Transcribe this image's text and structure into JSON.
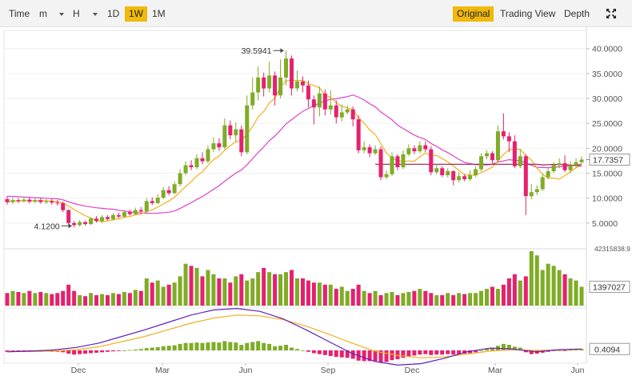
{
  "toolbar": {
    "time_label": "Time",
    "minute_label": "m",
    "hour_label": "H",
    "intervals": [
      "1D",
      "1W",
      "1M"
    ],
    "active_interval": "1W",
    "views": [
      "Original",
      "Trading View",
      "Depth"
    ],
    "active_view": "Original",
    "fullscreen_icon": "expand-icon"
  },
  "colors": {
    "up": "#7fac25",
    "down": "#e5216e",
    "ma_fast": "#f2b01e",
    "ma_slow": "#e040c8",
    "ma_mid": "#9b1a4b",
    "macd_line": "#6020c0",
    "signal_line": "#f2b01e",
    "accent": "#f0b90b"
  },
  "chart_data": [
    {
      "type": "candlestick",
      "title": "",
      "x_labels": [
        "Dec",
        "Mar",
        "Jun",
        "Sep",
        "Dec",
        "Mar",
        "Jun"
      ],
      "y_ticks": [
        "40.0000",
        "35.0000",
        "30.0000",
        "25.0000",
        "20.0000",
        "15.0000",
        "10.0000",
        "5.0000"
      ],
      "ylim": [
        0,
        43
      ],
      "high_label": "39.5941",
      "low_label": "4.1200",
      "last_price_label": "17.7357",
      "candles": [
        [
          9.8,
          9.2,
          10.4,
          8.7
        ],
        [
          9.2,
          9.6,
          10.1,
          8.8
        ],
        [
          9.6,
          9.4,
          10.0,
          9.0
        ],
        [
          9.4,
          9.7,
          10.3,
          9.1
        ],
        [
          9.7,
          9.3,
          10.2,
          8.9
        ],
        [
          9.3,
          9.6,
          10.0,
          9.0
        ],
        [
          9.6,
          9.2,
          10.0,
          8.9
        ],
        [
          9.2,
          9.4,
          9.8,
          8.8
        ],
        [
          9.4,
          9.1,
          9.9,
          8.7
        ],
        [
          9.1,
          9.0,
          9.6,
          8.5
        ],
        [
          9.0,
          7.6,
          9.3,
          7.2
        ],
        [
          7.6,
          5.0,
          7.8,
          4.6
        ],
        [
          5.0,
          4.6,
          5.4,
          4.12
        ],
        [
          4.6,
          5.2,
          5.6,
          4.3
        ],
        [
          5.2,
          4.8,
          5.5,
          4.5
        ],
        [
          4.8,
          5.9,
          6.2,
          4.6
        ],
        [
          5.9,
          5.4,
          6.4,
          5.1
        ],
        [
          5.4,
          6.2,
          6.6,
          5.0
        ],
        [
          6.2,
          5.8,
          6.6,
          5.5
        ],
        [
          5.8,
          6.6,
          7.0,
          5.5
        ],
        [
          6.6,
          6.3,
          7.1,
          6.0
        ],
        [
          6.3,
          7.2,
          7.6,
          6.1
        ],
        [
          7.2,
          6.8,
          7.7,
          6.5
        ],
        [
          6.8,
          7.6,
          8.1,
          6.6
        ],
        [
          7.6,
          7.3,
          8.2,
          7.0
        ],
        [
          7.3,
          9.4,
          10.0,
          7.1
        ],
        [
          9.4,
          9.0,
          10.2,
          8.6
        ],
        [
          9.0,
          10.1,
          10.8,
          8.8
        ],
        [
          10.1,
          11.6,
          12.2,
          9.8
        ],
        [
          11.6,
          11.0,
          12.4,
          10.6
        ],
        [
          11.0,
          12.8,
          13.4,
          10.8
        ],
        [
          12.8,
          15.0,
          15.8,
          12.4
        ],
        [
          15.0,
          16.6,
          17.4,
          14.6
        ],
        [
          16.6,
          16.2,
          17.6,
          15.6
        ],
        [
          16.2,
          18.0,
          18.8,
          15.8
        ],
        [
          18.0,
          17.4,
          19.2,
          16.8
        ],
        [
          17.4,
          19.8,
          20.6,
          17.0
        ],
        [
          19.8,
          21.0,
          22.2,
          19.2
        ],
        [
          21.0,
          20.2,
          22.0,
          19.5
        ],
        [
          20.2,
          24.6,
          26.0,
          19.8
        ],
        [
          24.6,
          22.6,
          25.6,
          21.8
        ],
        [
          22.6,
          23.8,
          25.2,
          21.2
        ],
        [
          23.8,
          19.2,
          24.6,
          18.4
        ],
        [
          19.2,
          28.6,
          30.6,
          18.8
        ],
        [
          28.6,
          31.2,
          34.2,
          27.8
        ],
        [
          31.2,
          34.2,
          36.4,
          29.6
        ],
        [
          34.2,
          32.0,
          35.2,
          30.4
        ],
        [
          32.0,
          34.6,
          37.4,
          31.2
        ],
        [
          34.6,
          30.6,
          35.4,
          28.6
        ],
        [
          30.6,
          34.2,
          37.8,
          30.0
        ],
        [
          34.2,
          38.0,
          39.5941,
          32.6
        ],
        [
          38.0,
          32.0,
          38.6,
          30.6
        ],
        [
          32.0,
          33.4,
          35.6,
          31.4
        ],
        [
          33.4,
          32.6,
          34.4,
          31.2
        ],
        [
          32.6,
          29.8,
          33.6,
          28.2
        ],
        [
          29.8,
          28.2,
          30.6,
          24.8
        ],
        [
          28.2,
          31.0,
          32.4,
          26.4
        ],
        [
          31.0,
          27.8,
          31.8,
          26.6
        ],
        [
          27.8,
          28.6,
          31.6,
          26.8
        ],
        [
          28.6,
          26.2,
          29.6,
          25.0
        ],
        [
          26.2,
          27.2,
          28.8,
          25.4
        ],
        [
          27.2,
          27.8,
          28.6,
          26.8
        ],
        [
          27.8,
          25.8,
          28.4,
          24.4
        ],
        [
          25.8,
          19.6,
          26.6,
          19.0
        ],
        [
          19.6,
          20.2,
          21.4,
          19.0
        ],
        [
          20.2,
          19.0,
          20.8,
          18.2
        ],
        [
          19.0,
          19.8,
          20.6,
          18.6
        ],
        [
          19.8,
          14.2,
          20.4,
          13.6
        ],
        [
          14.2,
          14.8,
          15.6,
          13.8
        ],
        [
          14.8,
          18.4,
          19.2,
          14.4
        ],
        [
          18.4,
          16.2,
          18.8,
          15.6
        ],
        [
          16.2,
          18.8,
          19.6,
          15.8
        ],
        [
          18.8,
          20.0,
          20.8,
          18.4
        ],
        [
          20.0,
          19.4,
          20.6,
          18.8
        ],
        [
          19.4,
          20.6,
          21.4,
          19.0
        ],
        [
          20.6,
          19.8,
          21.4,
          19.2
        ],
        [
          19.8,
          15.2,
          20.4,
          14.6
        ],
        [
          15.2,
          16.0,
          16.8,
          14.8
        ],
        [
          16.0,
          14.6,
          16.4,
          14.2
        ],
        [
          14.6,
          15.4,
          16.0,
          14.2
        ],
        [
          15.4,
          13.6,
          15.6,
          12.6
        ],
        [
          13.6,
          14.4,
          15.2,
          13.2
        ],
        [
          14.4,
          13.8,
          14.8,
          13.4
        ],
        [
          13.8,
          14.6,
          15.6,
          13.4
        ],
        [
          14.6,
          15.8,
          16.4,
          14.2
        ],
        [
          15.8,
          18.4,
          19.0,
          15.4
        ],
        [
          18.4,
          19.0,
          19.6,
          17.8
        ],
        [
          19.0,
          17.6,
          19.4,
          17.0
        ],
        [
          17.6,
          23.4,
          24.6,
          17.4
        ],
        [
          23.4,
          22.4,
          27.0,
          21.8
        ],
        [
          22.4,
          21.4,
          23.2,
          19.2
        ],
        [
          21.4,
          16.4,
          22.6,
          16.0
        ],
        [
          16.4,
          18.4,
          19.8,
          16.0
        ],
        [
          18.4,
          10.4,
          18.8,
          6.6
        ],
        [
          10.4,
          11.2,
          12.8,
          9.8
        ],
        [
          11.2,
          11.8,
          12.6,
          10.6
        ],
        [
          11.8,
          14.2,
          14.8,
          11.4
        ],
        [
          14.2,
          15.4,
          16.0,
          13.8
        ],
        [
          15.4,
          16.6,
          17.2,
          15.0
        ],
        [
          16.6,
          17.0,
          18.0,
          16.0
        ],
        [
          17.0,
          15.6,
          18.6,
          15.2
        ],
        [
          15.6,
          16.6,
          17.4,
          15.0
        ],
        [
          16.6,
          17.2,
          18.0,
          16.2
        ],
        [
          17.2,
          17.7357,
          18.4,
          16.8
        ]
      ],
      "volume_max_label": "42315838.9",
      "volume_last_label": "1397027",
      "volume": [
        12,
        14,
        13,
        12,
        14,
        12,
        13,
        12,
        11,
        12,
        14,
        20,
        14,
        10,
        9,
        12,
        10,
        11,
        10,
        12,
        11,
        13,
        12,
        15,
        14,
        26,
        22,
        24,
        18,
        20,
        22,
        28,
        40,
        38,
        36,
        28,
        34,
        30,
        26,
        26,
        22,
        28,
        30,
        24,
        26,
        32,
        36,
        32,
        30,
        30,
        32,
        34,
        26,
        26,
        24,
        22,
        22,
        20,
        20,
        16,
        18,
        14,
        16,
        20,
        14,
        12,
        14,
        10,
        12,
        13,
        10,
        12,
        13,
        14,
        16,
        14,
        12,
        10,
        10,
        12,
        10,
        12,
        11,
        12,
        12,
        14,
        16,
        18,
        16,
        20,
        26,
        30,
        24,
        28,
        52,
        48,
        34,
        40,
        38,
        34,
        30,
        26,
        24,
        18
      ],
      "macd_last_label": "0.4094",
      "macd_hist": [
        -0.3,
        -0.3,
        -0.2,
        -0.3,
        -0.2,
        -0.2,
        -0.3,
        -0.2,
        -0.3,
        -0.3,
        -0.4,
        -0.7,
        -0.9,
        -0.8,
        -0.7,
        -0.6,
        -0.5,
        -0.4,
        -0.3,
        -0.2,
        -0.1,
        0,
        0.1,
        0.2,
        0.3,
        0.5,
        0.6,
        0.7,
        0.9,
        1.0,
        1.1,
        1.4,
        1.6,
        1.6,
        1.7,
        1.6,
        1.7,
        1.8,
        1.7,
        2.0,
        1.8,
        1.7,
        1.2,
        1.6,
        1.8,
        2.0,
        1.6,
        1.4,
        0.9,
        1.0,
        1.2,
        0.6,
        0.3,
        0,
        -0.3,
        -0.6,
        -0.8,
        -1.0,
        -1.2,
        -1.4,
        -1.5,
        -1.6,
        -1.8,
        -2.2,
        -2.3,
        -2.3,
        -2.3,
        -2.6,
        -2.5,
        -2.1,
        -1.9,
        -1.6,
        -1.3,
        -1.1,
        -0.9,
        -0.8,
        -1.0,
        -0.9,
        -0.9,
        -0.8,
        -0.9,
        -0.8,
        -0.7,
        -0.6,
        -0.4,
        0,
        0.4,
        0.6,
        1.0,
        1.4,
        1.2,
        0.8,
        0.6,
        -0.4,
        -0.8,
        -0.7,
        -0.5,
        -0.3,
        -0.1,
        0,
        -0.1,
        0.1,
        0.2,
        0.3
      ],
      "macd_line": [
        -0.4,
        -0.2,
        0.1,
        0.8,
        2.0,
        3.8,
        5.6,
        7.6,
        9.6,
        11.0,
        11.4,
        10.6,
        8.6,
        5.6,
        2.4,
        -0.8,
        -3.0,
        -4.0,
        -3.6,
        -2.2,
        -0.4,
        0.6,
        0.4,
        -0.4,
        0.2,
        0.4
      ],
      "signal_line": [
        -0.3,
        -0.3,
        -0.2,
        0.2,
        1.0,
        2.4,
        3.8,
        5.6,
        7.4,
        8.8,
        9.6,
        9.4,
        8.4,
        6.6,
        4.4,
        2.0,
        -0.2,
        -1.4,
        -2.0,
        -1.8,
        -1.0,
        -0.2,
        0.2,
        0,
        0.1,
        0.3
      ]
    }
  ]
}
